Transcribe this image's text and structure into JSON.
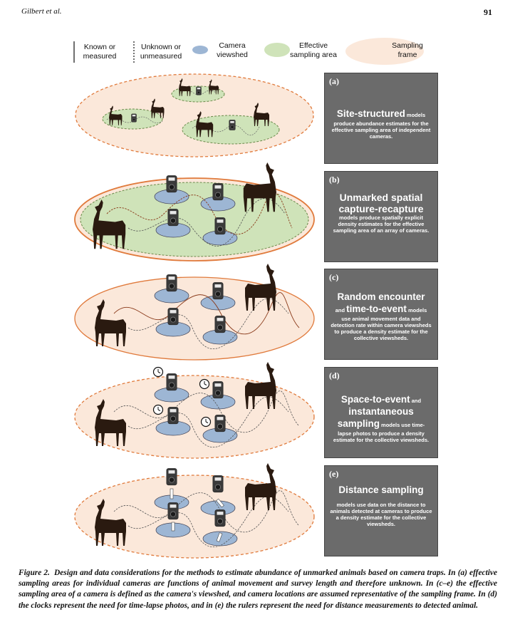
{
  "header": {
    "author": "Gilbert et al.",
    "page_number": "91"
  },
  "legend": {
    "known": [
      "Known or",
      "measured"
    ],
    "unknown": [
      "Unknown or",
      "unmeasured"
    ],
    "viewshed": [
      "Camera",
      "viewshed"
    ],
    "effective": [
      "Effective",
      "sampling area"
    ],
    "frame": [
      "Sampling",
      "frame"
    ]
  },
  "colors": {
    "frame_fill": "#fbe8da",
    "frame_edge": "#e07a3c",
    "effective_fill": "#cfe3b9",
    "viewshed_fill": "#9db6d4",
    "panel_fill": "#6b6b6b",
    "silhouette": "#2a1a10"
  },
  "panels": [
    {
      "tag": "(a)",
      "big": "Site-structured",
      "small_inline": " models",
      "small": "produce abundance estimates for the effective sampling area of independent cameras."
    },
    {
      "tag": "(b)",
      "big": "Unmarked spatial capture-recapture",
      "small": "models produce spatially explicit density estimates for the effective sampling area of an array of cameras."
    },
    {
      "tag": "(c)",
      "big": "Random encounter",
      "mid_prefix": "and ",
      "big2": "time-to-event",
      "mid_suffix": " models",
      "small": "use animal movement data and detection rate within camera viewsheds to produce a density estimate for the collective viewsheds."
    },
    {
      "tag": "(d)",
      "big": "Space-to-event",
      "mid_suffix": " and",
      "big2": "instantaneous",
      "big3": "sampling",
      "small_inline": " models use time-",
      "small": "lapse photos to produce a density estimate for the collective viewsheds."
    },
    {
      "tag": "(e)",
      "big": "Distance sampling",
      "small": "models use data on the distance to animals detected at cameras to produce a density estimate for the collective viewsheds."
    }
  ],
  "caption": {
    "lead": "Figure 2.",
    "text": "Design and data considerations for the methods to estimate abundance of unmarked animals based on camera traps. In (a) effective sampling areas for individual cameras are functions of animal movement and survey length and therefore unknown. In (c–e) the effective sampling area of a camera is defined as the camera's viewshed, and camera locations are assumed representative of the sampling frame. In (d) the clocks represent the need for time-lapse photos, and in (e) the rulers represent the need for distance measurements to detected animal."
  }
}
